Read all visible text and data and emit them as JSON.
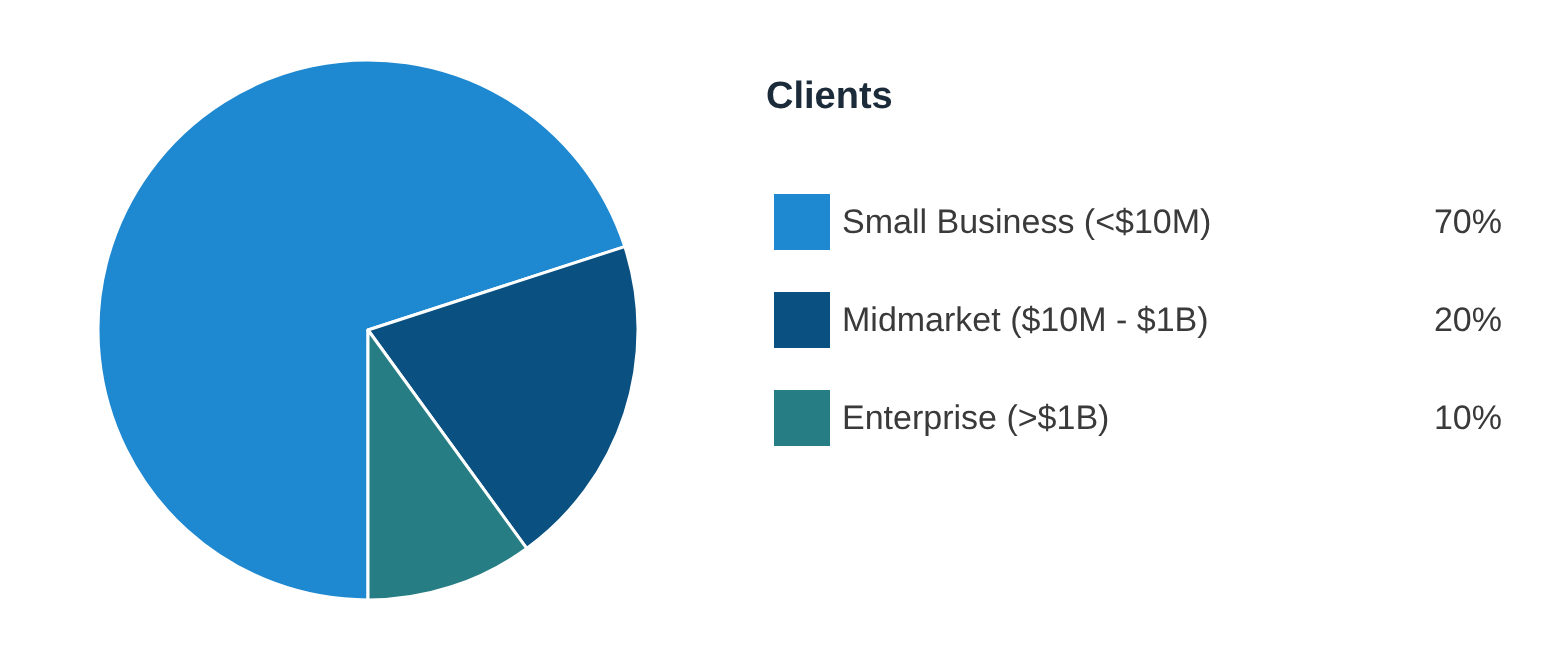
{
  "chart_data": {
    "type": "pie",
    "legend_title": "Clients",
    "categories": [
      "Small Business (<$10M)",
      "Midmarket ($10M - $1B)",
      "Enterprise (>$1B)"
    ],
    "values": [
      70,
      20,
      10
    ],
    "colors": [
      "#1e88d0",
      "#0a5080",
      "#267d84"
    ],
    "value_labels": [
      "70%",
      "20%",
      "10%"
    ],
    "legend": "right"
  }
}
